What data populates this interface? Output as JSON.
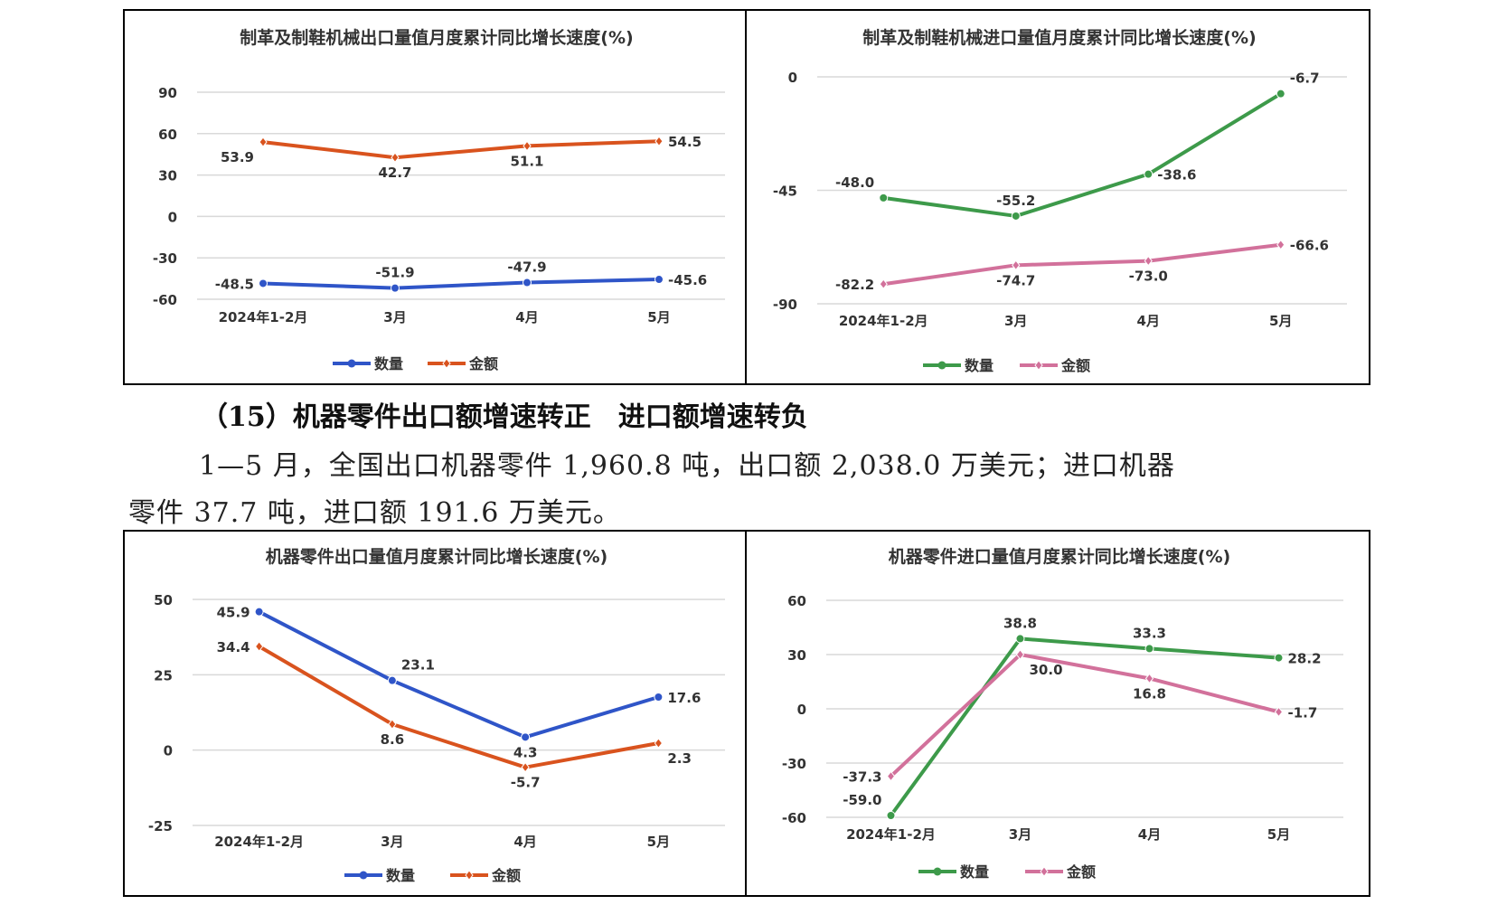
{
  "section_heading": "（15）机器零件出口额增速转正　进口额增速转负",
  "paragraph_line1": "1—5 月，全国出口机器零件 1,960.8 吨，出口额 2,038.0 万美元；进口机器",
  "paragraph_line2": "零件 37.7 吨，进口额 191.6 万美元。",
  "chart_data": [
    {
      "type": "line",
      "title": "制革及制鞋机械出口量值月度累计同比增长速度(%)",
      "categories": [
        "2024年1-2月",
        "3月",
        "4月",
        "5月"
      ],
      "ylim": [
        -60,
        90
      ],
      "yticks": [
        90,
        60,
        30,
        0,
        -30,
        -60
      ],
      "grid": true,
      "legend": "bottom",
      "series": [
        {
          "name": "数量",
          "color": "#2f55c8",
          "marker": "circle",
          "values": [
            -48.5,
            -51.9,
            -47.9,
            -45.6
          ],
          "labels": [
            "-48.5",
            "-51.9",
            "-47.9",
            "-45.6"
          ]
        },
        {
          "name": "金额",
          "color": "#d9531e",
          "marker": "diamond",
          "values": [
            53.9,
            42.7,
            51.1,
            54.5
          ],
          "labels": [
            "53.9",
            "42.7",
            "51.1",
            "54.5"
          ]
        }
      ]
    },
    {
      "type": "line",
      "title": "制革及制鞋机械进口量值月度累计同比增长速度(%)",
      "categories": [
        "2024年1-2月",
        "3月",
        "4月",
        "5月"
      ],
      "ylim": [
        -90,
        0
      ],
      "yticks": [
        0,
        -45,
        -90
      ],
      "grid": true,
      "legend": "bottom",
      "series": [
        {
          "name": "数量",
          "color": "#3d9a4a",
          "marker": "circle",
          "values": [
            -48.0,
            -55.2,
            -38.6,
            -6.7
          ],
          "labels": [
            "-48.0",
            "-55.2",
            "-38.6",
            "-6.7"
          ]
        },
        {
          "name": "金额",
          "color": "#d2719b",
          "marker": "diamond",
          "values": [
            -82.2,
            -74.7,
            -73.0,
            -66.6
          ],
          "labels": [
            "-82.2",
            "-74.7",
            "-73.0",
            "-66.6"
          ]
        }
      ]
    },
    {
      "type": "line",
      "title": "机器零件出口量值月度累计同比增长速度(%)",
      "categories": [
        "2024年1-2月",
        "3月",
        "4月",
        "5月"
      ],
      "ylim": [
        -25,
        50
      ],
      "yticks": [
        50,
        25,
        0,
        -25
      ],
      "grid": true,
      "legend": "bottom",
      "series": [
        {
          "name": "数量",
          "color": "#2f55c8",
          "marker": "circle",
          "values": [
            45.9,
            23.1,
            4.3,
            17.6
          ],
          "labels": [
            "45.9",
            "23.1",
            "4.3",
            "17.6"
          ]
        },
        {
          "name": "金额",
          "color": "#d9531e",
          "marker": "diamond",
          "values": [
            34.4,
            8.6,
            -5.7,
            2.3
          ],
          "labels": [
            "34.4",
            "8.6",
            "-5.7",
            "2.3"
          ]
        }
      ]
    },
    {
      "type": "line",
      "title": "机器零件进口量值月度累计同比增长速度(%)",
      "categories": [
        "2024年1-2月",
        "3月",
        "4月",
        "5月"
      ],
      "ylim": [
        -60,
        60
      ],
      "yticks": [
        60,
        30,
        0,
        -30,
        -60
      ],
      "grid": true,
      "legend": "bottom",
      "series": [
        {
          "name": "数量",
          "color": "#3d9a4a",
          "marker": "circle",
          "values": [
            -59.0,
            38.8,
            33.3,
            28.2
          ],
          "labels": [
            "-59.0",
            "38.8",
            "33.3",
            "28.2"
          ]
        },
        {
          "name": "金额",
          "color": "#d2719b",
          "marker": "diamond",
          "values": [
            -37.3,
            30.0,
            16.8,
            -1.7
          ],
          "labels": [
            "-37.3",
            "30.0",
            "16.8",
            "-1.7"
          ]
        }
      ]
    }
  ]
}
